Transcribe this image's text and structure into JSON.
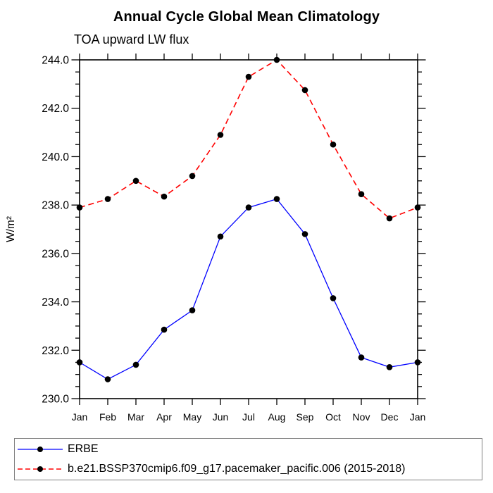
{
  "page": {
    "title": "Annual Cycle Global Mean Climatology",
    "subtitle": "TOA upward LW flux"
  },
  "chart_data": {
    "type": "line",
    "title": "Annual Cycle Global Mean Climatology",
    "subtitle": "TOA upward LW flux",
    "xlabel": "",
    "ylabel": "W/m²",
    "categories": [
      "Jan",
      "Feb",
      "Mar",
      "Apr",
      "May",
      "Jun",
      "Jul",
      "Aug",
      "Sep",
      "Oct",
      "Nov",
      "Dec",
      "Jan"
    ],
    "ylim": [
      230.0,
      244.0
    ],
    "ytick_major_step": 2.0,
    "ytick_minor_step": 0.5,
    "ytick_labels": [
      "230.0",
      "232.0",
      "234.0",
      "236.0",
      "238.0",
      "240.0",
      "242.0",
      "244.0"
    ],
    "grid": false,
    "legend_position": "bottom-left-box",
    "axis_color": "#000000",
    "marker": "filled-circle",
    "marker_color": "#000000",
    "series": [
      {
        "name": "ERBE",
        "color": "#0000ff",
        "line_style": "solid",
        "values": [
          231.5,
          230.8,
          231.4,
          232.85,
          233.65,
          236.7,
          237.9,
          238.25,
          236.8,
          234.15,
          231.7,
          231.3,
          231.5
        ]
      },
      {
        "name": "b.e21.BSSP370cmip6.f09_g17.pacemaker_pacific.006 (2015-2018)",
        "color": "#ff0000",
        "line_style": "dashed",
        "values": [
          237.9,
          238.25,
          239.0,
          238.35,
          239.2,
          240.9,
          243.3,
          244.0,
          242.75,
          240.5,
          238.45,
          237.45,
          237.9
        ]
      }
    ]
  },
  "legend": {
    "entries": [
      {
        "label": "ERBE"
      },
      {
        "label": "b.e21.BSSP370cmip6.f09_g17.pacemaker_pacific.006 (2015-2018)"
      }
    ]
  }
}
